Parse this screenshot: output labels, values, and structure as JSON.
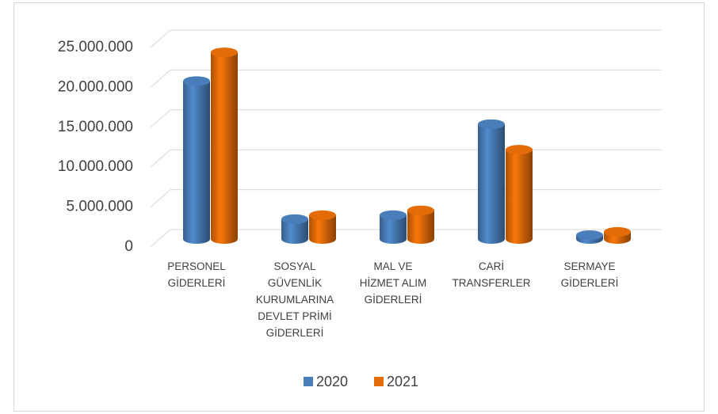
{
  "chart_data": {
    "type": "bar3d",
    "categories": [
      "PERSONEL\nGİDERLERİ",
      "SOSYAL\nGÜVENLİK\nKURUMLARINA\nDEVLET PRİMİ\nGİDERLERİ",
      "MAL VE\nHİZMET ALIM\nGİDERLERİ",
      "CARİ\nTRANSFERLER",
      "SERMAYE\nGİDERLERİ"
    ],
    "series": [
      {
        "name": "2020",
        "color": "#4a7ebb",
        "values": [
          19800000,
          2500000,
          3000000,
          14400000,
          500000
        ]
      },
      {
        "name": "2021",
        "color": "#e36c09",
        "values": [
          23400000,
          3000000,
          3600000,
          11200000,
          900000
        ]
      }
    ],
    "ylim": [
      0,
      25000000
    ],
    "yticks": [
      0,
      {
        "value": 5000000,
        "label": "5.000.000"
      },
      {
        "value": 10000000,
        "label": "10.000.000"
      },
      {
        "value": 15000000,
        "label": "15.000.000"
      },
      {
        "value": 20000000,
        "label": "20.000.000"
      },
      {
        "value": 25000000,
        "label": "25.000.000"
      }
    ],
    "grid": true,
    "legend": "bottom"
  }
}
